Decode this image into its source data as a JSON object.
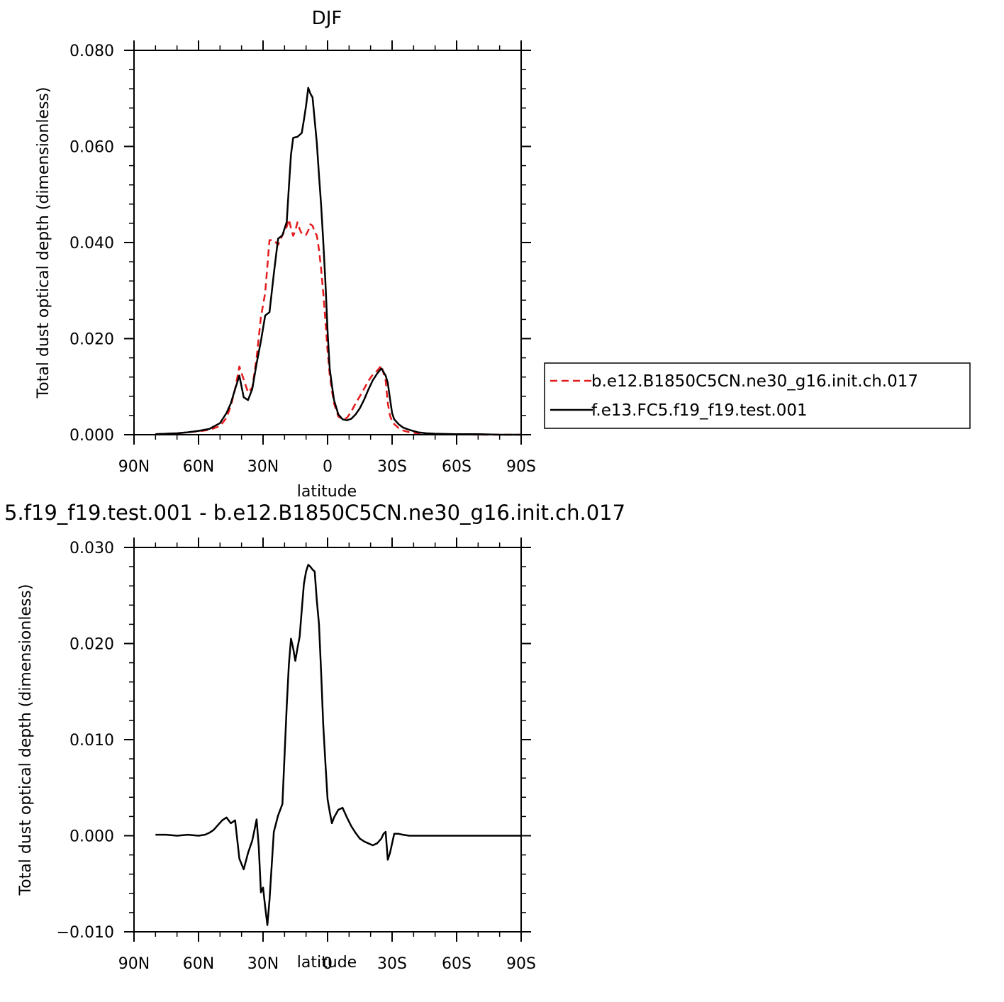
{
  "colors": {
    "model_b": "#e41a1c",
    "model_f": "#000000",
    "axis": "#000000"
  },
  "chart_data": [
    {
      "type": "line",
      "title": "DJF",
      "xlabel": "latitude",
      "ylabel": "Total dust optical depth (dimensionless)",
      "xlim": [
        90,
        -90
      ],
      "ylim": [
        0,
        0.08
      ],
      "xticks": [
        90,
        60,
        30,
        0,
        -30,
        -60,
        -90
      ],
      "xtick_labels": [
        "90N",
        "60N",
        "30N",
        "0",
        "30S",
        "60S",
        "90S"
      ],
      "yticks": [
        0,
        0.02,
        0.04,
        0.06,
        0.08
      ],
      "ytick_labels": [
        "0.000",
        "0.020",
        "0.040",
        "0.060",
        "0.080"
      ],
      "legend_position": "right",
      "legend": [
        "b.e12.B1850C5CN.ne30_g16.init.ch.017",
        "f.e13.FC5.f19_f19.test.001"
      ],
      "series": [
        {
          "name": "b.e12.B1850C5CN.ne30_g16.init.ch.017",
          "style": "dashed",
          "color": "#e41a1c",
          "x": [
            80,
            75,
            70,
            65,
            60,
            55,
            50,
            47,
            45,
            43,
            41,
            39,
            37,
            35,
            33,
            31,
            29,
            27,
            25,
            23,
            21,
            19,
            18,
            17,
            16,
            15,
            14,
            13,
            12,
            11,
            10,
            9,
            8,
            7,
            6,
            5,
            4,
            3,
            2,
            1,
            0,
            -1,
            -2,
            -3,
            -5,
            -7,
            -9,
            -11,
            -13,
            -15,
            -17,
            -19,
            -21,
            -23,
            -25,
            -27,
            -28,
            -29,
            -30,
            -31,
            -33,
            -35,
            -38,
            -42,
            -46,
            -50,
            -60,
            -70,
            -80,
            -90
          ],
          "y": [
            0.0001,
            0.0002,
            0.0003,
            0.0005,
            0.0007,
            0.001,
            0.0018,
            0.0035,
            0.006,
            0.0095,
            0.0142,
            0.0115,
            0.0088,
            0.0098,
            0.016,
            0.0245,
            0.0295,
            0.0405,
            0.0405,
            0.0395,
            0.0415,
            0.0433,
            0.0448,
            0.043,
            0.0414,
            0.0425,
            0.0442,
            0.0428,
            0.0418,
            0.0418,
            0.0416,
            0.0425,
            0.0438,
            0.0435,
            0.0422,
            0.0415,
            0.0385,
            0.0345,
            0.0295,
            0.0235,
            0.0175,
            0.0125,
            0.0092,
            0.0065,
            0.0038,
            0.0032,
            0.0035,
            0.0048,
            0.0065,
            0.008,
            0.0096,
            0.0112,
            0.0125,
            0.0133,
            0.0144,
            0.0113,
            0.0066,
            0.004,
            0.0028,
            0.0022,
            0.0014,
            0.0009,
            0.0005,
            0.0003,
            0.0002,
            0.0001,
            0.0001,
            0.0,
            0.0,
            0.0
          ]
        },
        {
          "name": "f.e13.FC5.f19_f19.test.001",
          "style": "solid",
          "color": "#000000",
          "x": [
            80,
            75,
            70,
            65,
            60,
            55,
            50,
            47,
            45,
            43,
            41,
            39,
            37,
            35,
            33,
            31,
            29,
            27,
            25,
            23,
            21,
            19,
            18,
            17,
            16,
            14,
            12,
            11,
            10,
            9,
            8,
            7,
            6,
            5,
            4,
            3,
            2,
            1,
            0,
            -1,
            -2,
            -3,
            -5,
            -7,
            -9,
            -11,
            -13,
            -15,
            -17,
            -19,
            -21,
            -23,
            -25,
            -27,
            -28,
            -29,
            -30,
            -31,
            -33,
            -35,
            -38,
            -42,
            -46,
            -50,
            -60,
            -70,
            -80,
            -90
          ],
          "y": [
            0.0001,
            0.0002,
            0.0003,
            0.0005,
            0.0008,
            0.0012,
            0.0024,
            0.0045,
            0.0065,
            0.0095,
            0.0123,
            0.0078,
            0.0072,
            0.0095,
            0.0148,
            0.0195,
            0.0248,
            0.0255,
            0.0335,
            0.0408,
            0.0415,
            0.0443,
            0.0515,
            0.0583,
            0.0618,
            0.062,
            0.0628,
            0.0655,
            0.0685,
            0.0722,
            0.071,
            0.0702,
            0.0655,
            0.0608,
            0.054,
            0.0478,
            0.0402,
            0.0316,
            0.0215,
            0.0138,
            0.0103,
            0.0072,
            0.0042,
            0.0032,
            0.003,
            0.0033,
            0.0042,
            0.0055,
            0.0073,
            0.0094,
            0.0113,
            0.0127,
            0.0138,
            0.0123,
            0.0108,
            0.0075,
            0.0045,
            0.0032,
            0.0022,
            0.0015,
            0.001,
            0.0005,
            0.0003,
            0.0002,
            0.0001,
            0.0001,
            0.0,
            0.0
          ]
        }
      ]
    },
    {
      "type": "line",
      "title": "5.f19_f19.test.001 - b.e12.B1850C5CN.ne30_g16.init.ch.017",
      "xlabel": "latitude",
      "ylabel": "Total dust optical depth (dimensionless)",
      "xlim": [
        90,
        -90
      ],
      "ylim": [
        -0.01,
        0.03
      ],
      "xticks": [
        90,
        60,
        30,
        0,
        -30,
        -60,
        -90
      ],
      "xtick_labels": [
        "90N",
        "60N",
        "30N",
        "0",
        "30S",
        "60S",
        "90S"
      ],
      "yticks": [
        -0.01,
        0,
        0.01,
        0.02,
        0.03
      ],
      "ytick_labels": [
        "−0.010",
        "0.000",
        "0.010",
        "0.020",
        "0.030"
      ],
      "series": [
        {
          "style": "solid",
          "color": "#000000",
          "x": [
            80,
            75,
            70,
            65,
            60,
            57,
            55,
            53,
            51,
            49,
            47,
            45,
            43,
            41,
            39,
            37,
            35,
            34,
            33,
            32,
            31,
            30,
            29,
            28,
            27,
            25,
            23,
            21,
            19,
            18,
            17,
            16,
            15,
            14,
            13,
            12,
            11,
            10,
            9,
            8,
            7,
            6,
            5,
            4,
            3,
            2,
            1,
            0,
            -1,
            -2,
            -3,
            -5,
            -7,
            -9,
            -11,
            -13,
            -15,
            -17,
            -19,
            -21,
            -23,
            -25,
            -26,
            -27,
            -28,
            -29,
            -30,
            -31,
            -33,
            -35,
            -38,
            -42,
            -46,
            -50,
            -60,
            -70,
            -80,
            -90
          ],
          "y": [
            0.0001,
            0.0001,
            0.0,
            0.0001,
            0.0,
            0.0001,
            0.0003,
            0.0006,
            0.0011,
            0.0016,
            0.0019,
            0.0013,
            0.0016,
            -0.0024,
            -0.0035,
            -0.0018,
            -0.0005,
            0.0006,
            0.0017,
            -0.0011,
            -0.0059,
            -0.0054,
            -0.0074,
            -0.0093,
            -0.0067,
            0.0004,
            0.0021,
            0.0033,
            0.0135,
            0.0178,
            0.0205,
            0.0195,
            0.0182,
            0.0195,
            0.0207,
            0.0235,
            0.0262,
            0.0275,
            0.0282,
            0.028,
            0.0277,
            0.0275,
            0.0245,
            0.022,
            0.017,
            0.0115,
            0.0075,
            0.0038,
            0.0025,
            0.0013,
            0.0019,
            0.0027,
            0.0029,
            0.0019,
            0.001,
            0.0003,
            -0.0003,
            -0.0006,
            -0.0008,
            -0.001,
            -0.0008,
            -0.0003,
            0.0002,
            0.0004,
            -0.0025,
            -0.0018,
            -0.0008,
            0.0002,
            0.0002,
            0.0001,
            0.0,
            0.0,
            0.0,
            0.0,
            0.0,
            0.0,
            0.0,
            0.0
          ]
        }
      ]
    }
  ]
}
